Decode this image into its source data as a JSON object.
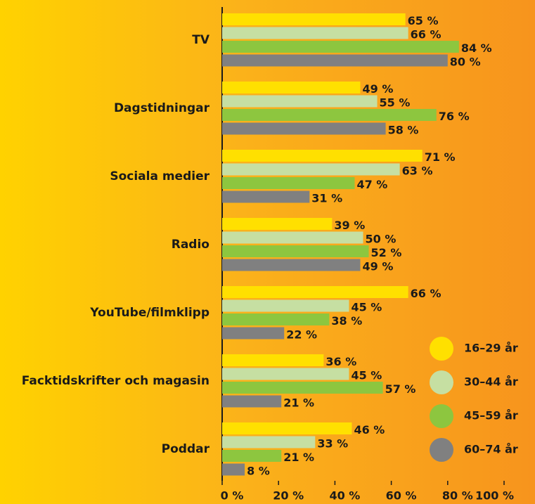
{
  "chart_data": {
    "type": "bar",
    "orientation": "horizontal",
    "categories": [
      "TV",
      "Dagstidningar",
      "Sociala medier",
      "Radio",
      "YouTube/filmklipp",
      "Facktidskrifter och magasin",
      "Poddar"
    ],
    "series": [
      {
        "name": "16–29 år",
        "color": "#ffe000",
        "values": [
          65,
          49,
          71,
          39,
          66,
          36,
          46
        ],
        "value_labels": [
          "65 %",
          "49 %",
          "71 %",
          "39 %",
          "66 %",
          "36 %",
          "46 %"
        ]
      },
      {
        "name": "30–44 år",
        "color": "#c6dfa2",
        "values": [
          66,
          55,
          63,
          50,
          45,
          45,
          33
        ],
        "value_labels": [
          "66 %",
          "55 %",
          "63 %",
          "50 %",
          "45 %",
          "45 %",
          "33 %"
        ]
      },
      {
        "name": "45–59 år",
        "color": "#8dc63f",
        "values": [
          84,
          76,
          47,
          52,
          38,
          57,
          21
        ],
        "value_labels": [
          "84 %",
          "76 %",
          "47 %",
          "52 %",
          "38 %",
          "57 %",
          "21 %"
        ]
      },
      {
        "name": "60–74 år",
        "color": "#808080",
        "values": [
          80,
          58,
          31,
          49,
          22,
          21,
          8
        ],
        "value_labels": [
          "80 %",
          "58 %",
          "31 %",
          "49 %",
          "22 %",
          "21 %",
          "8 %"
        ]
      }
    ],
    "xlim": [
      0,
      100
    ],
    "xticks": [
      {
        "value": 0,
        "label": "0 %"
      },
      {
        "value": 20,
        "label": "20 %"
      },
      {
        "value": 40,
        "label": "40 %"
      },
      {
        "value": 60,
        "label": "60 %"
      },
      {
        "value": 80,
        "label": "80 %"
      },
      {
        "value": 100,
        "label": "100 %"
      }
    ]
  }
}
